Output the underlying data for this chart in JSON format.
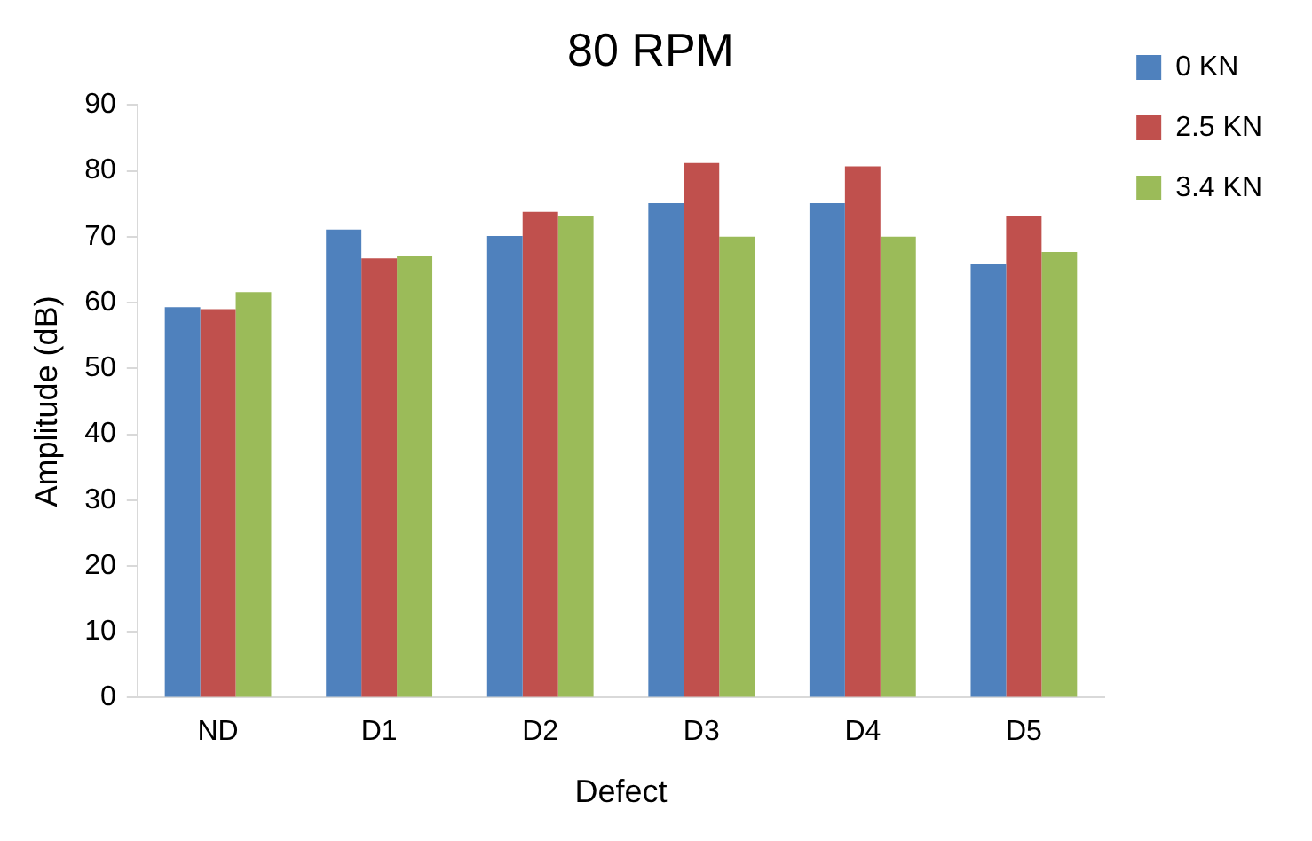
{
  "chart_data": {
    "type": "bar",
    "title": "80 RPM",
    "xlabel": "Defect",
    "ylabel": "Amplitude (dB)",
    "categories": [
      "ND",
      "D1",
      "D2",
      "D3",
      "D4",
      "D5"
    ],
    "series": [
      {
        "name": "0 KN",
        "color": "#4f81bd",
        "values": [
          59.3,
          71.1,
          70.1,
          75.1,
          75.1,
          65.8
        ]
      },
      {
        "name": "2.5 KN",
        "color": "#c0504d",
        "values": [
          59.0,
          66.7,
          73.8,
          81.2,
          80.7,
          73.1
        ]
      },
      {
        "name": "3.4 KN",
        "color": "#9bbb59",
        "values": [
          61.6,
          67.0,
          73.1,
          70.0,
          70.0,
          67.7
        ]
      }
    ],
    "ylim": [
      0,
      90
    ],
    "yticks": [
      0,
      10,
      20,
      30,
      40,
      50,
      60,
      70,
      80,
      90
    ],
    "grid": false,
    "legend": "top right"
  }
}
